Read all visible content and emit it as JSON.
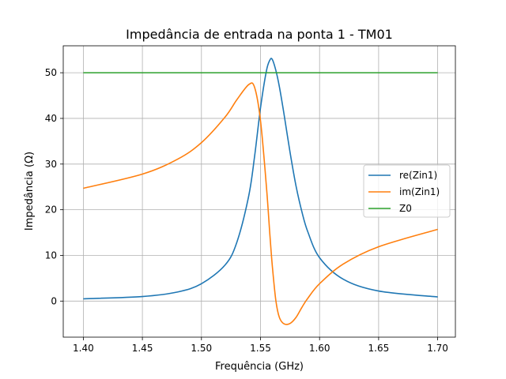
{
  "chart_data": {
    "type": "line",
    "title": "Impedância de entrada na ponta 1 - TM01",
    "xlabel": "Frequência (GHz)",
    "ylabel": "Impedância (Ω)",
    "xlim": [
      1.383,
      1.715
    ],
    "ylim": [
      -7.9,
      55.9
    ],
    "x_ticks": [
      1.4,
      1.45,
      1.5,
      1.55,
      1.6,
      1.65,
      1.7
    ],
    "x_tick_labels": [
      "1.40",
      "1.45",
      "1.50",
      "1.55",
      "1.60",
      "1.65",
      "1.70"
    ],
    "y_ticks": [
      0,
      10,
      20,
      30,
      40,
      50
    ],
    "y_tick_labels": [
      "0",
      "10",
      "20",
      "30",
      "40",
      "50"
    ],
    "grid": true,
    "legend_position": "center-right",
    "series": [
      {
        "name": "re(Zin1)",
        "color": "#1f77b4",
        "x": [
          1.4,
          1.45,
          1.48,
          1.5,
          1.52,
          1.53,
          1.54,
          1.545,
          1.55,
          1.555,
          1.558,
          1.56,
          1.563,
          1.566,
          1.57,
          1.575,
          1.58,
          1.585,
          1.59,
          1.6,
          1.62,
          1.65,
          1.7
        ],
        "y": [
          0.5,
          1.0,
          2.0,
          3.8,
          7.9,
          12.9,
          23.0,
          31.7,
          42.3,
          50.4,
          52.8,
          52.9,
          50.5,
          46.9,
          40.8,
          32.6,
          25.3,
          19.6,
          15.2,
          9.5,
          4.8,
          2.2,
          0.9
        ]
      },
      {
        "name": "im(Zin1)",
        "color": "#ff7f0e",
        "x": [
          1.4,
          1.45,
          1.48,
          1.5,
          1.52,
          1.53,
          1.54,
          1.545,
          1.55,
          1.555,
          1.558,
          1.56,
          1.563,
          1.566,
          1.57,
          1.575,
          1.58,
          1.585,
          1.59,
          1.6,
          1.62,
          1.65,
          1.7
        ],
        "y": [
          24.7,
          27.8,
          31.1,
          34.7,
          40.3,
          44.1,
          47.4,
          46.8,
          39.5,
          25.1,
          14.3,
          7.7,
          0.1,
          -3.6,
          -5.0,
          -4.9,
          -3.6,
          -1.4,
          0.6,
          3.8,
          8.1,
          11.9,
          15.7
        ]
      },
      {
        "name": "Z0",
        "color": "#2ca02c",
        "x": [
          1.4,
          1.7
        ],
        "y": [
          50,
          50
        ]
      }
    ]
  }
}
